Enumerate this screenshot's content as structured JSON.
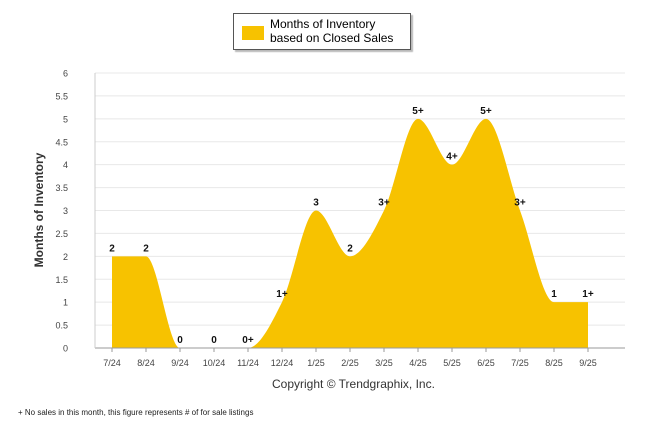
{
  "chart_data": {
    "type": "area",
    "ylabel": "Months of Inventory",
    "xlabel": "",
    "ylim": [
      0,
      6
    ],
    "yticks": [
      "0",
      "0.5",
      "1",
      "1.5",
      "2",
      "2.5",
      "3",
      "3.5",
      "4",
      "4.5",
      "5",
      "5.5",
      "6"
    ],
    "categories": [
      "7/24",
      "8/24",
      "9/24",
      "10/24",
      "11/24",
      "12/24",
      "1/25",
      "2/25",
      "3/25",
      "4/25",
      "5/25",
      "6/25",
      "7/25",
      "8/25",
      "9/25"
    ],
    "series": [
      {
        "name": "Months of Inventory based on Closed Sales",
        "values": [
          2,
          2,
          0,
          0,
          0,
          1,
          3,
          2,
          3,
          5,
          4,
          5,
          3,
          1,
          1
        ],
        "labels": [
          "2",
          "2",
          "0",
          "0",
          "0+",
          "1+",
          "3",
          "2",
          "3+",
          "5+",
          "4+",
          "5+",
          "3+",
          "1",
          "1+"
        ]
      }
    ],
    "legend_position": "top-center",
    "grid": true
  },
  "legend": {
    "label": "Months of Inventory based on Closed Sales"
  },
  "copyright": "Copyright © Trendgraphix, Inc.",
  "footnote": "+  No sales in this month, this figure represents # of for sale listings",
  "colors": {
    "area": "#f7c200",
    "grid": "#e8e8e8",
    "axis": "#9a9a9a"
  }
}
